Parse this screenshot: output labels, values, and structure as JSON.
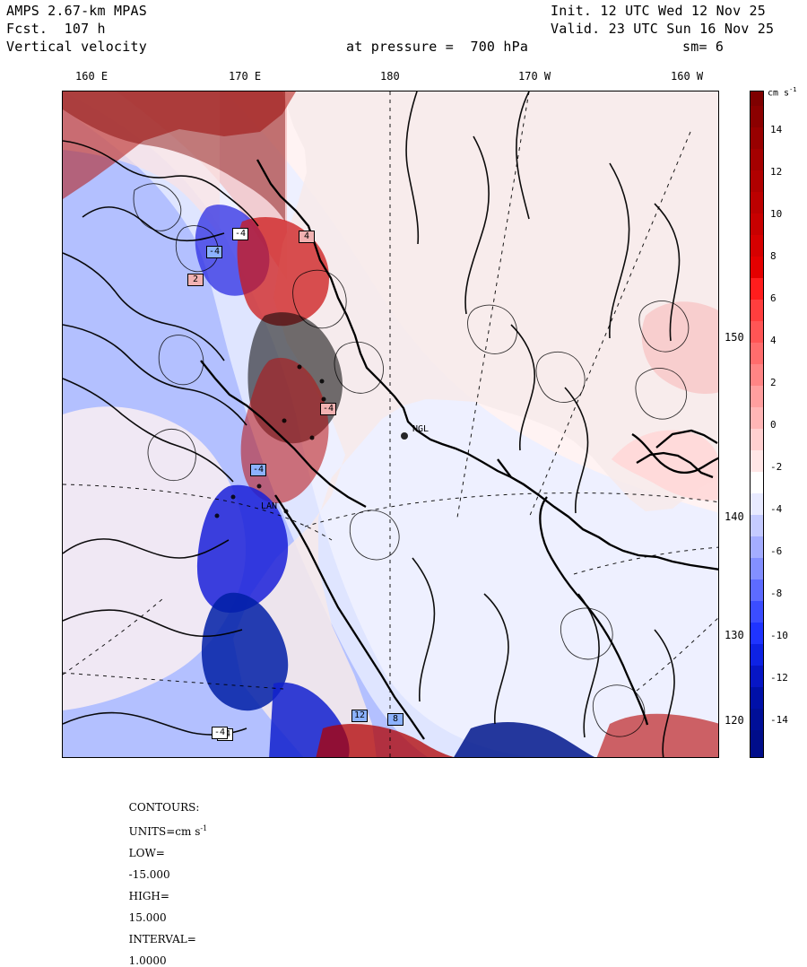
{
  "header": {
    "title_left_1": "AMPS 2.67-km MPAS",
    "title_left_2": "Fcst.  107 h",
    "title_left_3": "Vertical velocity",
    "title_right_1": "Init. 12 UTC Wed 12 Nov 25",
    "title_right_2": "Valid. 23 UTC Sun 16 Nov 25",
    "pressure_text": "at pressure =  700 hPa",
    "sm_text": "sm= 6"
  },
  "map": {
    "longitudes": [
      "160 E",
      "170 E",
      "180",
      "170 W",
      "160 W"
    ],
    "latitudes_right": [
      "150 W",
      "140 W",
      "130 W",
      "120 W"
    ],
    "station_labels": [
      "NGL",
      "LAN"
    ]
  },
  "colorbar": {
    "unit": "cm s",
    "unit_superscript": "-1",
    "tick_labels": [
      "14",
      "12",
      "10",
      "8",
      "6",
      "4",
      "2",
      "0",
      "-2",
      "-4",
      "-6",
      "-8",
      "-10",
      "-12",
      "-14"
    ],
    "colors": {
      "dark_red": "#7f0000",
      "red": "#ff3b3b",
      "light_red": "#ffd9d9",
      "neutral": "#ffffff",
      "light_blue": "#e6e8ff",
      "blue": "#3a4dff",
      "dark_blue": "#0010a0"
    }
  },
  "legend": {
    "contours_label": "CONTOURS:",
    "units_label": "UNITS=cm s",
    "units_superscript": "-1",
    "low_label": "LOW=",
    "low_value": "-15.000",
    "high_label": "HIGH=",
    "high_value": "15.000",
    "interval_label": "INTERVAL=",
    "interval_value": "1.0000"
  },
  "markers": [
    {
      "label": "-4",
      "type": "white"
    },
    {
      "label": "-4",
      "type": "blue"
    },
    {
      "label": "2",
      "type": "red"
    },
    {
      "label": "4",
      "type": "red"
    },
    {
      "label": "-4",
      "type": "red"
    },
    {
      "label": "-4",
      "type": "white"
    },
    {
      "label": "-4",
      "type": "blue"
    },
    {
      "label": "12",
      "type": "blue"
    },
    {
      "label": "8",
      "type": "blue"
    },
    {
      "label": "-4",
      "type": "white"
    }
  ]
}
